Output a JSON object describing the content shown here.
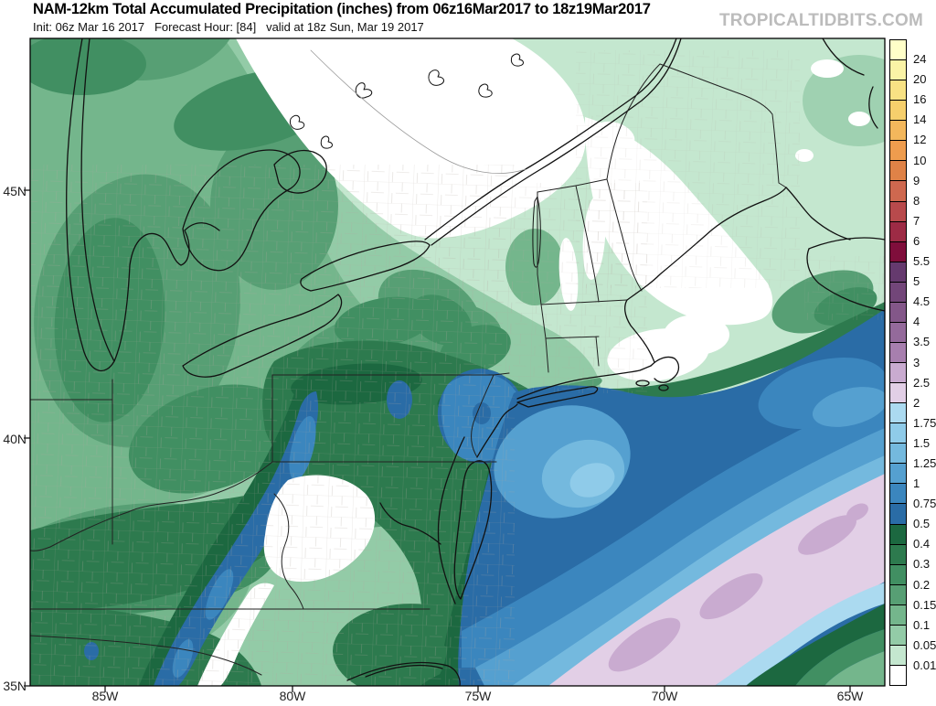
{
  "header": {
    "title": "NAM-12km Total Accumulated Precipitation (inches) from 06z16Mar2017 to 18z19Mar2017",
    "init_line": "Init: 06z Mar 16 2017   Forecast Hour: [84]   valid at 18z Sun, Mar 19 2017",
    "watermark": "TROPICALTIDBITS.COM"
  },
  "palette": [
    "#ffffc8",
    "#faf3a6",
    "#f8e284",
    "#f6cf6c",
    "#f3b75c",
    "#ee9c4e",
    "#df8247",
    "#ce684f",
    "#b84a4c",
    "#9d2b45",
    "#7f0e3b",
    "#653a6e",
    "#724679",
    "#835789",
    "#946a9b",
    "#a77fae",
    "#c9abd0",
    "#e2cfe6",
    "#abdaf0",
    "#8fcbe9",
    "#74b9de",
    "#55a0d0",
    "#3b86be",
    "#2a6ca6",
    "#1c6840",
    "#2d7a4e",
    "#418f62",
    "#579f74",
    "#74b68c",
    "#93cba7",
    "#c4e7cf",
    "#ffffff"
  ],
  "colorbar": {
    "boundary_labels": [
      "24",
      "20",
      "16",
      "14",
      "12",
      "10",
      "9",
      "8",
      "7",
      "6",
      "5.5",
      "5",
      "4.5",
      "4",
      "3.5",
      "3",
      "2.5",
      "2",
      "1.75",
      "1.5",
      "1.25",
      "1",
      "0.75",
      "0.5",
      "0.4",
      "0.3",
      "0.2",
      "0.15",
      "0.1",
      "0.05",
      "0.01"
    ]
  },
  "axes": {
    "y_labels": [
      "45N",
      "40N",
      "35N"
    ],
    "x_labels": [
      "85W",
      "80W",
      "75W",
      "70W",
      "65W"
    ]
  },
  "chart_data": {
    "type": "heatmap",
    "variable": "Total Accumulated Precipitation",
    "units": "inches",
    "model": "NAM-12km",
    "init": "06z Mar 16 2017",
    "forecast_hour": "[84]",
    "valid": "18z Sun, Mar 19 2017",
    "period_from": "06z16Mar2017",
    "period_to": "18z19Mar2017",
    "x_axis_labels": [
      "85W",
      "80W",
      "75W",
      "70W",
      "65W"
    ],
    "y_axis_labels": [
      "45N",
      "40N",
      "35N"
    ],
    "scale_boundaries_inches": [
      0.01,
      0.05,
      0.1,
      0.15,
      0.2,
      0.3,
      0.4,
      0.5,
      0.75,
      1,
      1.25,
      1.5,
      1.75,
      2,
      2.5,
      3,
      3.5,
      4,
      4.5,
      5,
      5.5,
      6,
      7,
      8,
      9,
      10,
      12,
      14,
      16,
      20,
      24
    ],
    "legend_position": "right",
    "notable_regions": [
      {
        "area": "Atlantic offshore band southeast of the Northeast US",
        "value_in": "2 to 3"
      },
      {
        "area": "Coastal waters off New Jersey and Long Island",
        "value_in": "1 to 2"
      },
      {
        "area": "New Jersey / NYC metro",
        "value_in": "0.75 to 1"
      },
      {
        "area": "Central Appalachians stripe WV/VA into NC",
        "value_in": "0.5 to 1"
      },
      {
        "area": "Eastern North Carolina / Pamlico Sound",
        "value_in": "0.75 to 1.5"
      },
      {
        "area": "Great Lakes, Ohio Valley, Pennsylvania",
        "value_in": "0.1 to 0.5"
      },
      {
        "area": "Northern New England and Quebec",
        "value_in": "0 to 0.1"
      },
      {
        "area": "Central Virginia pocket",
        "value_in": "0"
      },
      {
        "area": "Central and coastal Maine pocket",
        "value_in": "0"
      }
    ]
  }
}
